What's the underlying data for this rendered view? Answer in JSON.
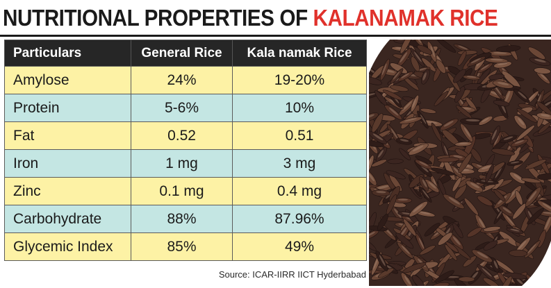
{
  "title": {
    "part1": "NUTRITIONAL PROPERTIES OF ",
    "part2": "KALANAMAK RICE",
    "accent_color": "#e0312b"
  },
  "table": {
    "headers": [
      "Particulars",
      "General Rice",
      "Kala namak Rice"
    ],
    "rows": [
      {
        "particular": "Amylose",
        "general": "24%",
        "kalanamak": "19-20%"
      },
      {
        "particular": "Protein",
        "general": "5-6%",
        "kalanamak": "10%"
      },
      {
        "particular": "Fat",
        "general": "0.52",
        "kalanamak": "0.51"
      },
      {
        "particular": "Iron",
        "general": "1 mg",
        "kalanamak": "3 mg"
      },
      {
        "particular": "Zinc",
        "general": "0.1 mg",
        "kalanamak": "0.4 mg"
      },
      {
        "particular": "Carbohydrate",
        "general": "88%",
        "kalanamak": "87.96%"
      },
      {
        "particular": "Glycemic Index",
        "general": "85%",
        "kalanamak": "49%"
      }
    ],
    "row_colors": [
      "#fdf2a5",
      "#c4e6e3"
    ],
    "header_color": "#262626"
  },
  "source": "Source: ICAR-IIRR IICT Hyderbabad",
  "photo": {
    "icon": "rice-grains-photo",
    "grain_color": "#4a2e24"
  }
}
